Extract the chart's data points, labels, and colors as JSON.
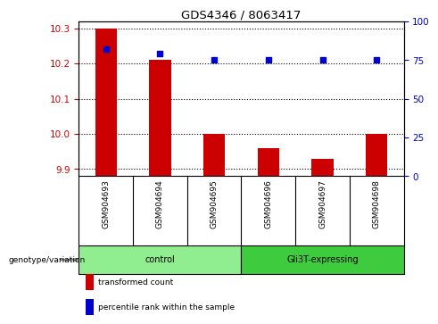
{
  "title": "GDS4346 / 8063417",
  "samples": [
    "GSM904693",
    "GSM904694",
    "GSM904695",
    "GSM904696",
    "GSM904697",
    "GSM904698"
  ],
  "transformed_counts": [
    10.3,
    10.21,
    10.0,
    9.96,
    9.93,
    10.0
  ],
  "percentile_ranks": [
    82,
    79,
    75,
    75,
    75,
    75
  ],
  "ylim_left": [
    9.88,
    10.32
  ],
  "ylim_right": [
    0,
    100
  ],
  "yticks_left": [
    9.9,
    10.0,
    10.1,
    10.2,
    10.3
  ],
  "yticks_right": [
    0,
    25,
    50,
    75,
    100
  ],
  "groups": [
    {
      "label": "control",
      "indices": [
        0,
        1,
        2
      ],
      "color": "#90EE90"
    },
    {
      "label": "Gli3T-expressing",
      "indices": [
        3,
        4,
        5
      ],
      "color": "#3ECC3E"
    }
  ],
  "bar_color": "#CC0000",
  "dot_color": "#0000CC",
  "background_color": "#ffffff",
  "plot_bg_color": "#ffffff",
  "tick_color_left": "#CC0000",
  "tick_color_right": "#0000CC",
  "sample_row_bg": "#C8C8C8",
  "genotype_label": "genotype/variation",
  "legend_items": [
    {
      "color": "#CC0000",
      "label": "transformed count"
    },
    {
      "color": "#0000CC",
      "label": "percentile rank within the sample"
    }
  ],
  "dotted_line_color": "#000000",
  "bar_width": 0.4,
  "dot_size": 25
}
